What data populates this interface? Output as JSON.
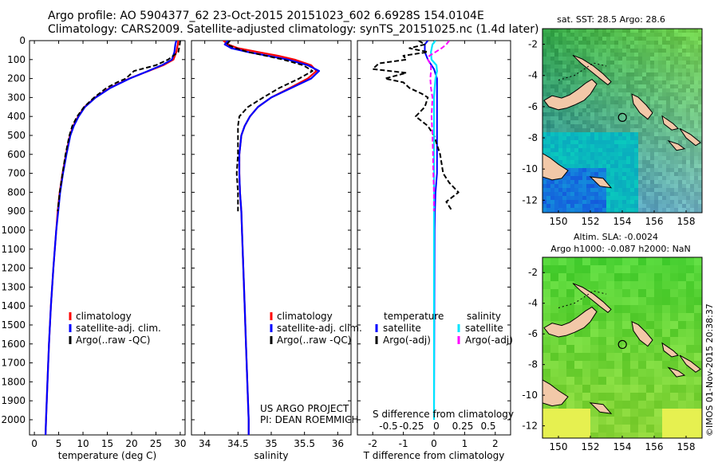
{
  "header": {
    "line1": "Argo profile: AO 5904377_62 23-Oct-2015 20151023_602 6.6928S 154.0104E",
    "line2": "Climatology: CARS2009. Satellite-adjusted climatology: synTS_20151025.nc (1.4d later)"
  },
  "credits": {
    "project": "US ARGO PROJECT",
    "pi": "PI: DEAN ROEMMICH",
    "timestamp": "©IMOS 01-Nov-2015 20:38:37"
  },
  "colors": {
    "climatology": "#ff0000",
    "satellite": "#0000ff",
    "argo": "#000000",
    "sat_sal": "#00e5ff",
    "argo_sal": "#ff00ff",
    "land": "#f2c8a8"
  },
  "chart_data": [
    {
      "id": "temperature",
      "type": "line",
      "xlabel": "temperature (deg C)",
      "ylabel": "",
      "xlim": [
        -1,
        31
      ],
      "ylim": [
        2080,
        0
      ],
      "xticks": [
        0,
        5,
        10,
        15,
        20,
        25,
        30
      ],
      "yticks": [
        0,
        100,
        200,
        300,
        400,
        500,
        600,
        700,
        800,
        900,
        1000,
        1100,
        1200,
        1300,
        1400,
        1500,
        1600,
        1700,
        1800,
        1900,
        2000
      ],
      "legend": [
        "climatology",
        "satellite-adj. clim.",
        "Argo(..raw -QC)"
      ],
      "series": [
        {
          "name": "climatology",
          "depth": [
            0,
            20,
            60,
            100,
            130,
            160,
            200,
            250,
            300,
            350,
            400,
            450,
            500,
            600,
            700,
            800,
            900,
            1000,
            1200,
            1400,
            1600,
            1800,
            2000,
            2080
          ],
          "values": [
            29.6,
            29.5,
            29.2,
            28.6,
            26.5,
            23.5,
            19.5,
            15.5,
            12.5,
            10.3,
            9.0,
            8.0,
            7.3,
            6.5,
            5.8,
            5.2,
            4.8,
            4.5,
            3.9,
            3.4,
            3.0,
            2.7,
            2.4,
            2.3
          ]
        },
        {
          "name": "satellite",
          "depth": [
            0,
            20,
            60,
            100,
            130,
            160,
            200,
            250,
            300,
            350,
            400,
            450,
            500,
            600,
            700,
            800,
            900,
            1000,
            1200,
            1400,
            1600,
            1800,
            2000,
            2080
          ],
          "values": [
            29.2,
            29.0,
            28.8,
            28.3,
            26.2,
            23.4,
            19.6,
            15.6,
            12.6,
            10.4,
            9.1,
            8.1,
            7.4,
            6.6,
            5.9,
            5.3,
            4.9,
            4.5,
            3.9,
            3.4,
            3.0,
            2.7,
            2.4,
            2.3
          ]
        },
        {
          "name": "argo",
          "depth": [
            0,
            20,
            60,
            100,
            130,
            160,
            200,
            220,
            250,
            300,
            350,
            400,
            450,
            500,
            600,
            700,
            800,
            900
          ],
          "values": [
            30.0,
            29.9,
            29.6,
            27.5,
            25.0,
            20.5,
            18.8,
            17.0,
            14.8,
            12.3,
            10.2,
            8.8,
            7.8,
            7.2,
            6.4,
            5.8,
            5.2,
            4.8
          ]
        }
      ]
    },
    {
      "id": "salinity",
      "type": "line",
      "xlabel": "salinity",
      "ylabel": "",
      "xlim": [
        33.8,
        36.2
      ],
      "ylim": [
        2080,
        0
      ],
      "xticks": [
        34,
        34.5,
        35,
        35.5,
        36
      ],
      "legend": [
        "climatology",
        "satellite-adj. clim.",
        "Argo(..raw -QC)"
      ],
      "series": [
        {
          "name": "climatology",
          "depth": [
            0,
            20,
            40,
            60,
            80,
            100,
            130,
            160,
            200,
            250,
            300,
            350,
            400,
            450,
            500,
            600,
            700,
            800,
            900,
            1000,
            1200,
            1400,
            1600,
            1800,
            2000,
            2080
          ],
          "values": [
            34.28,
            34.35,
            34.5,
            34.8,
            35.1,
            35.35,
            35.6,
            35.68,
            35.55,
            35.28,
            35.0,
            34.8,
            34.68,
            34.6,
            34.55,
            34.52,
            34.52,
            34.53,
            34.55,
            34.56,
            34.58,
            34.6,
            34.62,
            34.64,
            34.66,
            34.66
          ]
        },
        {
          "name": "satellite",
          "depth": [
            0,
            20,
            40,
            60,
            80,
            100,
            130,
            160,
            200,
            250,
            300,
            350,
            400,
            450,
            500,
            600,
            700,
            800,
            900,
            1000,
            1200,
            1400,
            1600,
            1800,
            2000,
            2080
          ],
          "values": [
            34.35,
            34.3,
            34.4,
            34.65,
            34.95,
            35.25,
            35.55,
            35.72,
            35.6,
            35.3,
            35.0,
            34.8,
            34.68,
            34.6,
            34.55,
            34.52,
            34.52,
            34.53,
            34.55,
            34.56,
            34.58,
            34.6,
            34.62,
            34.64,
            34.66,
            34.66
          ]
        },
        {
          "name": "argo",
          "depth": [
            0,
            20,
            40,
            60,
            80,
            100,
            130,
            160,
            200,
            250,
            300,
            350,
            400,
            450,
            500,
            600,
            700,
            800,
            900
          ],
          "values": [
            34.38,
            34.33,
            34.47,
            34.65,
            34.92,
            35.18,
            35.48,
            35.62,
            35.42,
            35.12,
            34.88,
            34.65,
            34.52,
            34.5,
            34.5,
            34.5,
            34.48,
            34.5,
            34.5
          ]
        }
      ]
    },
    {
      "id": "difference",
      "type": "line",
      "xlabel": "T difference from climatology",
      "xlabel_top": "S difference from climatology",
      "xlim": [
        -2.5,
        2.5
      ],
      "ylim": [
        2080,
        0
      ],
      "xticks": [
        -2,
        -1,
        0,
        1,
        2
      ],
      "xticks_top": [
        "-0.5",
        "-0.25",
        "0",
        "0.25",
        "0.5"
      ],
      "legend_headers": [
        "temperature",
        "salinity"
      ],
      "legend": [
        "satellite",
        "Argo(-adj)",
        "satellite",
        "Argo(-adj)"
      ],
      "series": [
        {
          "name": "T satellite",
          "depth": [
            0,
            20,
            60,
            100,
            150,
            200,
            300,
            400,
            500,
            600,
            700,
            800,
            900,
            1000,
            2000
          ],
          "values": [
            -0.2,
            -0.3,
            -0.3,
            -0.2,
            0.0,
            0.1,
            0.1,
            0.1,
            0.1,
            0.1,
            0.1,
            0.05,
            0.03,
            0.02,
            0.0
          ]
        },
        {
          "name": "T argo",
          "depth": [
            0,
            20,
            40,
            60,
            80,
            100,
            120,
            150,
            170,
            200,
            220,
            250,
            280,
            300,
            350,
            400,
            450,
            500,
            600,
            700,
            750,
            800,
            850,
            900
          ],
          "values": [
            -0.5,
            -0.3,
            -0.8,
            -0.2,
            -1.0,
            -0.9,
            -1.8,
            -2.0,
            -0.9,
            -1.6,
            -1.0,
            -0.8,
            -0.4,
            -0.2,
            -0.3,
            -0.6,
            -0.2,
            0.0,
            0.2,
            0.3,
            0.5,
            0.8,
            0.4,
            0.6
          ]
        },
        {
          "name": "S satellite",
          "depth": [
            0,
            20,
            60,
            100,
            130,
            160,
            200,
            250,
            300,
            400,
            500,
            700,
            900,
            1000,
            2000
          ],
          "values": [
            0.05,
            -0.05,
            -0.1,
            -0.08,
            0.08,
            0.1,
            0.05,
            0.02,
            0.0,
            0.0,
            0.0,
            0.0,
            0.0,
            0.0,
            0.0
          ]
        },
        {
          "name": "S argo",
          "depth": [
            0,
            20,
            40,
            60,
            80,
            100,
            130,
            160,
            200,
            250,
            300,
            400,
            500,
            600,
            700,
            800,
            900
          ],
          "values": [
            0.5,
            0.4,
            0.25,
            0.05,
            -0.15,
            -0.2,
            -0.1,
            -0.1,
            -0.12,
            -0.1,
            -0.05,
            -0.08,
            -0.05,
            -0.03,
            -0.02,
            0.0,
            0.0
          ]
        }
      ]
    },
    {
      "id": "sst-map",
      "type": "heatmap",
      "title": "sat. SST: 28.5 Argo: 28.6",
      "xlim": [
        149,
        159
      ],
      "ylim": [
        -12.8,
        -1
      ],
      "xticks": [
        150,
        152,
        154,
        156,
        158
      ],
      "yticks": [
        -2,
        -4,
        -6,
        -8,
        -10,
        -12
      ],
      "marker": {
        "lon": 154.01,
        "lat": -6.69
      }
    },
    {
      "id": "sla-map",
      "type": "heatmap",
      "title": "Altim. SLA: -0.0024",
      "subtitle": "Argo h1000: -0.087 h2000: NaN",
      "xlim": [
        149,
        159
      ],
      "ylim": [
        -12.8,
        -1
      ],
      "xticks": [
        150,
        152,
        154,
        156,
        158
      ],
      "yticks": [
        -2,
        -4,
        -6,
        -8,
        -10,
        -12
      ],
      "marker": {
        "lon": 154.01,
        "lat": -6.69
      }
    }
  ]
}
